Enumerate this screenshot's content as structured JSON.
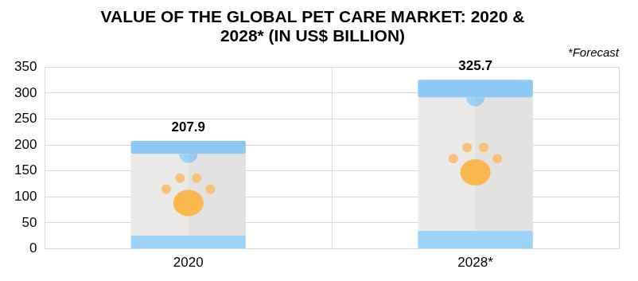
{
  "chart_data": {
    "type": "bar",
    "title": "VALUE OF THE GLOBAL PET CARE MARKET: 2020 & 2028* (IN US$ BILLION)",
    "annotation": "*Forecast",
    "categories": [
      "2020",
      "2028*"
    ],
    "values": [
      207.9,
      325.7
    ],
    "color": "#ebeae8",
    "ylim": [
      0,
      350
    ],
    "yticks": [
      0,
      50,
      100,
      150,
      200,
      250,
      300,
      350
    ],
    "grid": true,
    "data_labels": true
  }
}
